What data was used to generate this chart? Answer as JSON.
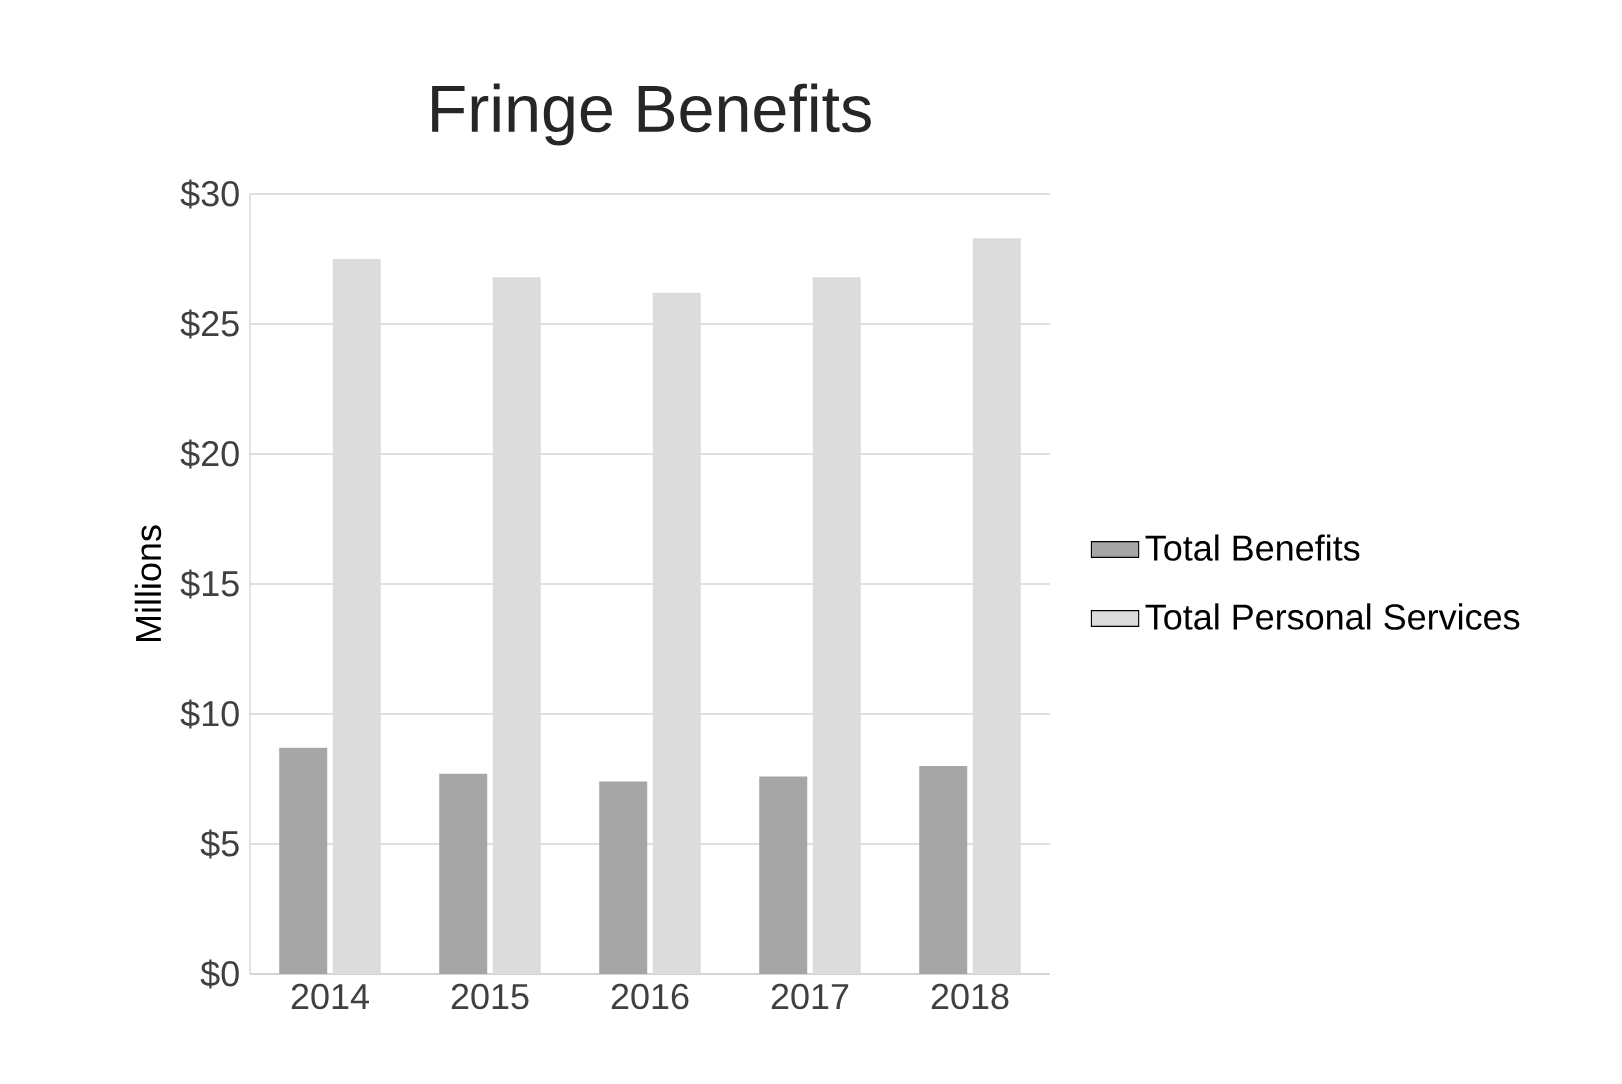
{
  "chart_data": {
    "type": "bar",
    "title": "Fringe Benefits",
    "ylabel": "Millions",
    "categories": [
      "2014",
      "2015",
      "2016",
      "2017",
      "2018"
    ],
    "series": [
      {
        "name": "Total Benefits",
        "color": "#a6a6a6",
        "values": [
          8.7,
          7.7,
          7.4,
          7.6,
          8.0
        ]
      },
      {
        "name": "Total Personal Services",
        "color": "#dcdcdc",
        "values": [
          27.5,
          26.8,
          26.2,
          26.8,
          28.3
        ]
      }
    ],
    "ylim": [
      0,
      30
    ],
    "yticks": [
      {
        "value": 0,
        "label": "$0"
      },
      {
        "value": 5,
        "label": "$5"
      },
      {
        "value": 10,
        "label": "$10"
      },
      {
        "value": 15,
        "label": "$15"
      },
      {
        "value": 20,
        "label": "$20"
      },
      {
        "value": 25,
        "label": "$25"
      },
      {
        "value": 30,
        "label": "$30"
      }
    ],
    "grid": "y",
    "legend": "right"
  }
}
